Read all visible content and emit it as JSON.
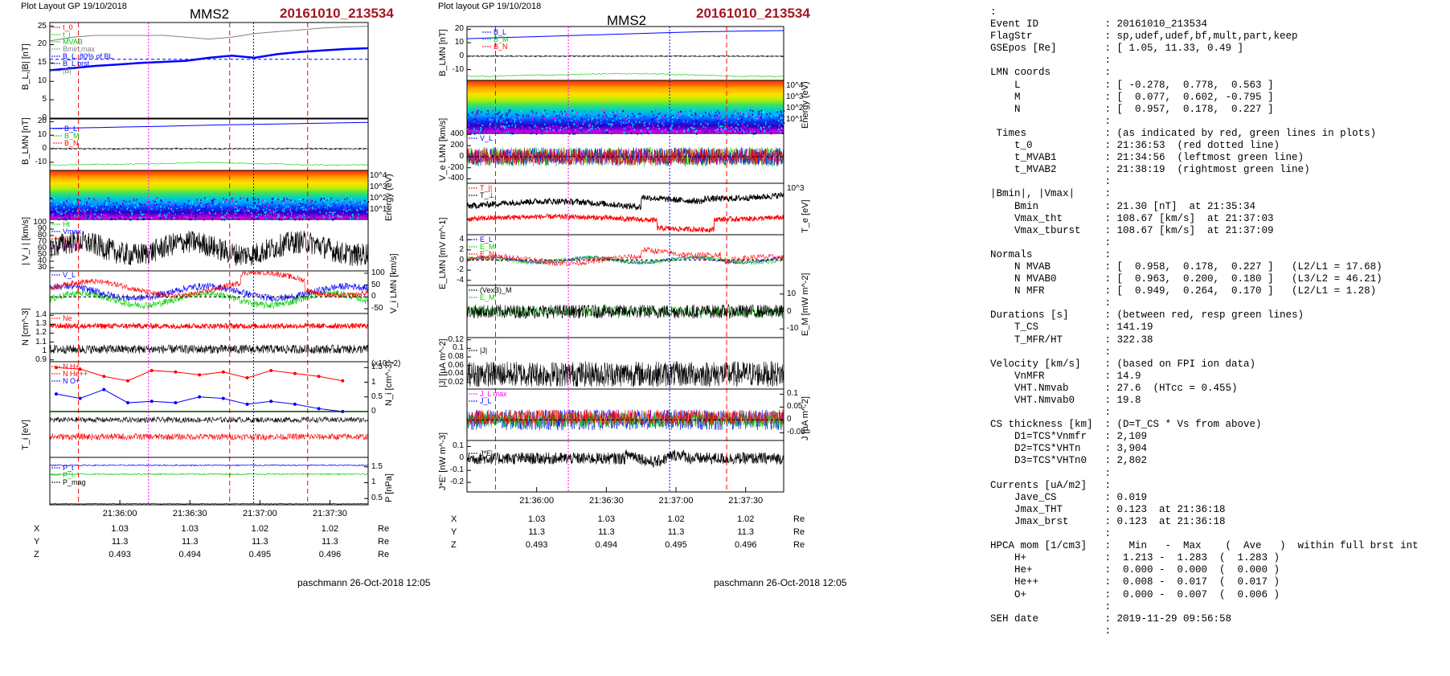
{
  "left_plot": {
    "header": "Plot Layout GP 19/10/2018",
    "spacecraft": "MMS2",
    "event": "20161010_213534",
    "ylabels": [
      "B_L,|B| [nT]",
      "B_LMN [nT]",
      "Energy (eV)",
      "| V_i | [km/s]",
      "V_i LMN [km/s]",
      "N [cm^-3]",
      "N_i [cm^-3]",
      "T_i [eV]",
      "P [nPa]"
    ],
    "legend_p1": [
      "t_0",
      "t_i",
      "MVAB",
      "Bmin,max",
      "B_L, 80% of BL",
      "B_L brst",
      "|B|"
    ],
    "legend_p2": [
      "B_L",
      "B_M",
      "B_N"
    ],
    "legend_p4": [
      "Ht",
      "Vmax",
      "t0",
      "tburst"
    ],
    "legend_p5": [
      "V_L"
    ],
    "legend_p6": [
      "Ne"
    ],
    "legend_p7": [
      "N H+",
      "N He++",
      "N O+"
    ],
    "legend_p9": [
      "P_t",
      "P_i",
      "P_mag"
    ],
    "n_scale_note": "(x10^-2)",
    "xticks": [
      "21:36:00",
      "21:36:30",
      "21:37:00",
      "21:37:30"
    ],
    "ephem": {
      "labels": [
        "X",
        "Y",
        "Z"
      ],
      "unit": "Re",
      "X": [
        "1.03",
        "1.03",
        "1.02",
        "1.02"
      ],
      "Y": [
        "11.3",
        "11.3",
        "11.3",
        "11.3"
      ],
      "Z": [
        "0.493",
        "0.494",
        "0.495",
        "0.496"
      ]
    },
    "footer": "paschmann 26-Oct-2018 12:05"
  },
  "right_plot": {
    "header": "Plot layout GP 19/10/2018",
    "spacecraft": "MMS2",
    "event": "20161010_213534",
    "ylabels_left": [
      "B_LMN [nT]",
      "V_e LMN [km/s]",
      "E_LMN [mV m^-1]",
      "|J| [µA m^-2]",
      "J*E' [nW m^-3]"
    ],
    "ylabels_right": [
      "Energy (eV)",
      "T_e [eV]",
      "E_M [mW m^-2]",
      "J [µA m^-2]"
    ],
    "legend_b": [
      "B_L",
      "B_M",
      "B_N"
    ],
    "legend_ve": [
      "V_L"
    ],
    "legend_te": [
      "T_||",
      "T_⊥"
    ],
    "legend_e": [
      "E_L",
      "E_M",
      "E_N"
    ],
    "legend_em": [
      "(VexB)_M",
      "E_M"
    ],
    "legend_j": [
      "|J|"
    ],
    "legend_jl": [
      "J_L max",
      "J_L"
    ],
    "legend_je": [
      "J*E'"
    ],
    "xticks": [
      "21:36:00",
      "21:36:30",
      "21:37:00",
      "21:37:30"
    ],
    "ephem": {
      "labels": [
        "X",
        "Y",
        "Z"
      ],
      "unit": "Re",
      "X": [
        "1.03",
        "1.03",
        "1.02",
        "1.02"
      ],
      "Y": [
        "11.3",
        "11.3",
        "11.3",
        "11.3"
      ],
      "Z": [
        "0.493",
        "0.494",
        "0.495",
        "0.496"
      ]
    },
    "footer": "paschmann 26-Oct-2018 12:05"
  },
  "info_lines": [
    ":",
    "Event ID           : 20161010_213534",
    "FlagStr            : sp,udef,udef,bf,mult,part,keep",
    "GSEpos [Re]        : [ 1.05, 11.33, 0.49 ]",
    "                   :",
    "LMN coords         :",
    "    L              : [ -0.278,  0.778,  0.563 ]",
    "    M              : [  0.077,  0.602, -0.795 ]",
    "    N              : [  0.957,  0.178,  0.227 ]",
    "                   :",
    " Times             : (as indicated by red, green lines in plots)",
    "    t_0            : 21:36:53  (red dotted line)",
    "    t_MVAB1        : 21:34:56  (leftmost green line)",
    "    t_MVAB2        : 21:38:19  (rightmost green line)",
    "                   :",
    "|Bmin|, |Vmax|     :",
    "    Bmin           : 21.30 [nT]  at 21:35:34",
    "    Vmax_tht       : 108.67 [km/s]  at 21:37:03",
    "    Vmax_tburst    : 108.67 [km/s]  at 21:37:09",
    "                   :",
    "Normals            :",
    "    N MVAB         : [  0.958,  0.178,  0.227 ]   (L2/L1 = 17.68)",
    "    N MVAB0        : [  0.963,  0.200,  0.180 ]   (L3/L2 = 46.21)",
    "    N MFR          : [  0.949,  0.264,  0.170 ]   (L2/L1 = 1.28)",
    "                   :",
    "Durations [s]      : (between red, resp green lines)",
    "    T_CS           : 141.19",
    "    T_MFR/HT       : 322.38",
    "                   :",
    "Velocity [km/s]    : (based on FPI ion data)",
    "    VnMFR          : 14.9",
    "    VHT.Nmvab      : 27.6  (HTcc = 0.455)",
    "    VHT.Nmvab0     : 19.8",
    "                   :",
    "CS thickness [km]  : (D=T_CS * Vs from above)",
    "    D1=TCS*Vnmfr   : 2,109",
    "    D2=TCS*VHTn    : 3,904",
    "    D3=TCS*VHTn0   : 2,802",
    "                   :",
    "Currents [uA/m2]   :",
    "    Jave_CS        : 0.019",
    "    Jmax_THT       : 0.123  at 21:36:18",
    "    Jmax_brst      : 0.123  at 21:36:18",
    "                   :",
    "HPCA mom [1/cm3]   :   Min   -  Max    (  Ave   )  within full brst int",
    "    H+             :  1.213 -  1.283  (  1.283 )",
    "    He+            :  0.000 -  0.000  (  0.000 )",
    "    He++           :  0.008 -  0.017  (  0.017 )",
    "    O+             :  0.000 -  0.007  (  0.006 )",
    "                   :",
    "SEH date           : 2019-11-29 09:56:58",
    "                   :"
  ],
  "chart_data": [
    {
      "type": "line",
      "title": "MMS2",
      "subtitle": "20161010_213534",
      "x_ticks": [
        "21:36:00",
        "21:36:30",
        "21:37:00",
        "21:37:30"
      ],
      "marker_lines": {
        "red_dashed": [
          "21:35:48",
          "21:36:35",
          "21:37:36"
        ],
        "magenta_dotted": [
          "21:36:20"
        ],
        "blue_dotted": [
          "21:37:04"
        ]
      },
      "panels": [
        {
          "ylabel": "B_L,|B| [nT]",
          "yticks": [
            0,
            5,
            10,
            15,
            20,
            25
          ],
          "ylim": [
            0,
            26
          ],
          "series": [
            {
              "name": "|B|",
              "values": [
                21,
                22,
                22.5,
                22.5,
                22.5,
                22.5,
                22,
                21.5,
                22,
                23,
                23.5,
                24,
                24.5,
                24.8,
                25
              ]
            },
            {
              "name": "B_L",
              "values": [
                13,
                13.6,
                14.2,
                14.6,
                15,
                15.3,
                15.6,
                16.4,
                17,
                16.4,
                17.4,
                18,
                18.4,
                18.8,
                19
              ]
            }
          ]
        },
        {
          "ylabel": "B_LMN [nT]",
          "yticks": [
            -10,
            0,
            10,
            20
          ],
          "ylim": [
            -16,
            22
          ],
          "series": [
            {
              "name": "B_L",
              "values": [
                15,
                15.3,
                15.6,
                16,
                16.3,
                16.6,
                17,
                17.4,
                17.8,
                18,
                18.3,
                18.6,
                18.9,
                19.2,
                19.5
              ]
            },
            {
              "name": "B_M",
              "values": [
                0,
                0,
                0,
                0,
                0,
                0,
                0,
                0,
                0,
                0,
                0,
                0,
                0,
                0,
                0
              ]
            },
            {
              "name": "B_N",
              "values": [
                -12,
                -12,
                -11.5,
                -11.5,
                -11,
                -11,
                -10.5,
                -10,
                -10.5,
                -11,
                -11,
                -12,
                -12,
                -12,
                -12
              ]
            }
          ]
        },
        {
          "ylabel": "Energy (eV)",
          "yticks": [
            "10^1",
            "10^2",
            "10^3",
            "10^4"
          ],
          "type": "heatmap"
        },
        {
          "ylabel": "| V_i | [km/s]",
          "yticks": [
            30,
            40,
            50,
            60,
            70,
            80,
            90,
            100
          ],
          "ylim": [
            25,
            105
          ]
        },
        {
          "ylabel": "V_i LMN [km/s]",
          "yticks": [
            -50,
            0,
            50,
            100
          ],
          "ylim": [
            -70,
            110
          ]
        },
        {
          "ylabel": "N [cm^-3]",
          "yticks": [
            0.9,
            1.0,
            1.1,
            1.2,
            1.3,
            1.4
          ],
          "ylim": [
            0.88,
            1.42
          ]
        },
        {
          "ylabel": "N_i [cm^-3]",
          "yticks": [
            0.0,
            0.5,
            1.0,
            1.5
          ],
          "ylim": [
            0,
            1.7
          ],
          "series": [
            {
              "name": "N H+",
              "values": [
                1.5,
                1.45,
                1.2,
                1.05,
                1.4,
                1.35,
                1.25,
                1.35,
                1.15,
                1.4,
                1.3,
                1.2,
                1.05
              ]
            },
            {
              "name": "N O+",
              "values": [
                0.6,
                0.45,
                0.75,
                0.3,
                0.35,
                0.3,
                0.5,
                0.45,
                0.25,
                0.35,
                0.25,
                0.1,
                0.0
              ]
            }
          ]
        },
        {
          "ylabel": "T_i [eV]",
          "yticks": [],
          "ylim": [
            0,
            1
          ]
        },
        {
          "ylabel": "P [nPa]",
          "yticks": [
            0.5,
            1.0,
            1.5
          ],
          "ylim": [
            0.3,
            1.8
          ],
          "series": [
            {
              "name": "P_t",
              "values": [
                1.55,
                1.55,
                1.55,
                1.55,
                1.55,
                1.55,
                1.55,
                1.55,
                1.55,
                1.55
              ]
            },
            {
              "name": "P_i",
              "values": [
                1.3,
                1.3,
                1.28,
                1.28,
                1.26,
                1.26,
                1.25,
                1.25,
                1.25,
                1.25
              ]
            },
            {
              "name": "P_mag",
              "values": [
                0.3,
                0.3,
                0.3,
                0.3,
                0.3,
                0.3,
                0.3,
                0.3,
                0.3,
                0.3
              ]
            }
          ]
        }
      ]
    },
    {
      "type": "line",
      "title": "MMS2",
      "subtitle": "20161010_213534",
      "x_ticks": [
        "21:36:00",
        "21:36:30",
        "21:37:00",
        "21:37:30"
      ],
      "marker_lines": {
        "red_dashed": [
          "21:35:48",
          "21:37:36"
        ],
        "magenta_dotted": [
          "21:36:20"
        ],
        "blue_dotted": [
          "21:37:04"
        ]
      },
      "panels": [
        {
          "ylabel": "B_LMN [nT]",
          "yticks": [
            -10,
            0,
            10,
            20
          ],
          "ylim": [
            -18,
            22
          ],
          "series": [
            {
              "name": "B_L",
              "values": [
                13,
                13.5,
                14,
                14.5,
                15,
                15.5,
                16,
                16.5,
                17,
                17.5,
                18,
                18.3,
                18.6,
                18.8,
                19
              ]
            },
            {
              "name": "B_M",
              "values": [
                0,
                0,
                0,
                0,
                0,
                0,
                0,
                0,
                0,
                0,
                0,
                0,
                0,
                0,
                0
              ]
            },
            {
              "name": "B_N",
              "values": [
                -15,
                -15,
                -14.5,
                -14,
                -14,
                -13.5,
                -13,
                -13,
                -13,
                -13.5,
                -14,
                -14.5,
                -15,
                -15,
                -15
              ]
            }
          ]
        },
        {
          "ylabel": "Energy (eV)",
          "yticks": [
            "10^1",
            "10^2",
            "10^3",
            "10^4"
          ],
          "type": "heatmap"
        },
        {
          "ylabel": "V_e LMN [km/s]",
          "yticks": [
            -400,
            -200,
            0,
            200,
            400
          ],
          "ylim": [
            -480,
            420
          ]
        },
        {
          "ylabel": "T_e [eV]",
          "yticks": [
            "10^3"
          ],
          "type": "line"
        },
        {
          "ylabel": "E_LMN [mV m^-1]",
          "yticks": [
            -4,
            -2,
            0,
            2,
            4
          ],
          "ylim": [
            -5,
            5
          ]
        },
        {
          "ylabel": "E_M [mW m^-2]",
          "yticks": [
            -10,
            0,
            10
          ],
          "ylim": [
            -15,
            15
          ]
        },
        {
          "ylabel": "|J| [µA m^-2]",
          "yticks": [
            0.02,
            0.04,
            0.06,
            0.08,
            0.1,
            0.12
          ],
          "ylim": [
            0.005,
            0.125
          ]
        },
        {
          "ylabel": "J [µA m^-2]",
          "yticks": [
            -0.05,
            0.0,
            0.05,
            0.1
          ],
          "ylim": [
            -0.08,
            0.12
          ]
        },
        {
          "ylabel": "J*E' [nW m^-3]",
          "yticks": [
            -0.2,
            -0.1,
            0.0,
            0.1
          ],
          "ylim": [
            -0.28,
            0.15
          ]
        }
      ]
    }
  ],
  "colors": {
    "event": "#a31621",
    "red": "#ff0000",
    "blue": "#0000ff",
    "green": "#00cc00",
    "black": "#000000",
    "magenta": "#ff00ff",
    "gray": "#808080"
  }
}
